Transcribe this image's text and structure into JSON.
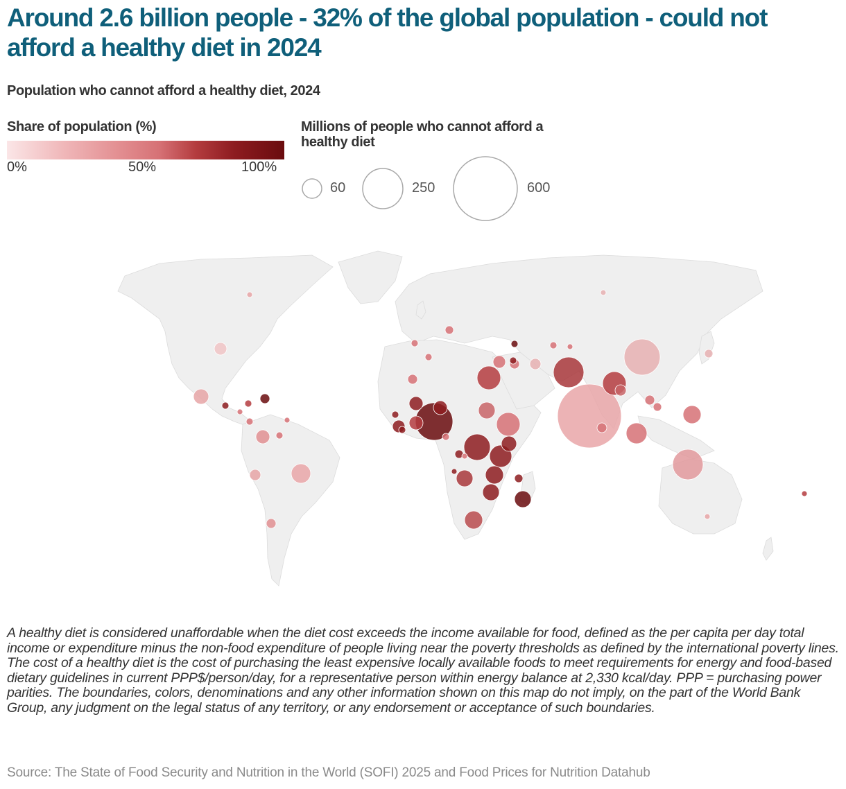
{
  "header": {
    "title": "Around 2.6 billion people - 32% of the global population - could not afford a healthy diet in 2024",
    "subtitle": "Population who cannot afford a healthy diet, 2024"
  },
  "legend": {
    "color": {
      "title": "Share of population (%)",
      "ticks": [
        "0%",
        "50%",
        "100%"
      ],
      "colors": [
        "#fbe6e7",
        "#e38f92",
        "#b43c3f",
        "#6a0c0e"
      ]
    },
    "size": {
      "title": "Millions of people who cannot afford a healthy diet",
      "values": [
        "60",
        "250",
        "600"
      ]
    }
  },
  "map": {
    "land_color": "#efefef",
    "border_color": "#555555",
    "bubble_stroke": "#ffffff"
  },
  "footer": {
    "note": "A healthy diet is considered unaffordable when the diet cost exceeds the income available for food, defined as the per capita per day total income or expenditure minus the non-food expenditure of people living near the poverty thresholds as defined by the international poverty lines. The cost of a healthy diet is the cost of purchasing the least expensive locally available foods to meet requirements for energy and food-based dietary guidelines in current PPP$/person/day, for a representative person within energy balance at 2,330 kcal/day. PPP = purchasing power parities. The boundaries, colors, denominations and any other information shown on this map do not imply, on the part of the World Bank Group, any judgment on the legal status of any territory, or any endorsement or acceptance of such boundaries.",
    "source": "Source: The State of Food Security and Nutrition in the World (SOFI) 2025 and Food Prices for Nutrition Datahub"
  }
}
